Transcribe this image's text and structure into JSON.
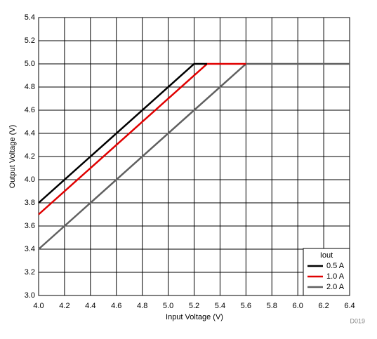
{
  "chart_data": {
    "type": "line",
    "xlabel": "Input Voltage (V)",
    "ylabel": "Output Voltage (V)",
    "legend_title": "Iout",
    "legend": "lower right",
    "grid": true,
    "note": "D019",
    "series": [
      {
        "name": "0.5 A",
        "color": "#000000",
        "x": [
          4.0,
          5.2,
          5.3
        ],
        "values": [
          3.8,
          5.0,
          5.0
        ]
      },
      {
        "name": "1.0 A",
        "color": "#e00000",
        "x": [
          4.0,
          5.3,
          5.6
        ],
        "values": [
          3.7,
          5.0,
          5.0
        ]
      },
      {
        "name": "2.0 A",
        "color": "#606060",
        "x": [
          4.0,
          5.6,
          6.4
        ],
        "values": [
          3.4,
          5.0,
          5.0
        ]
      }
    ],
    "xlim": [
      4.0,
      6.4
    ],
    "xticks": [
      {
        "value": 4,
        "label": "4.0"
      },
      4.2,
      4.4,
      4.6,
      4.8,
      {
        "value": 5,
        "label": "5.0"
      },
      5.2,
      5.4,
      5.6,
      5.8,
      {
        "value": 6,
        "label": "6.0"
      },
      6.2,
      6.4
    ],
    "ylim": [
      3.0,
      5.4
    ],
    "yticks": [
      {
        "value": 3,
        "label": "3.0"
      },
      3.2,
      3.4,
      3.6,
      3.8,
      {
        "value": 4,
        "label": "4.0"
      },
      4.2,
      4.4,
      4.6,
      4.8,
      {
        "value": 5,
        "label": "5.0"
      },
      5.2,
      5.4
    ]
  }
}
